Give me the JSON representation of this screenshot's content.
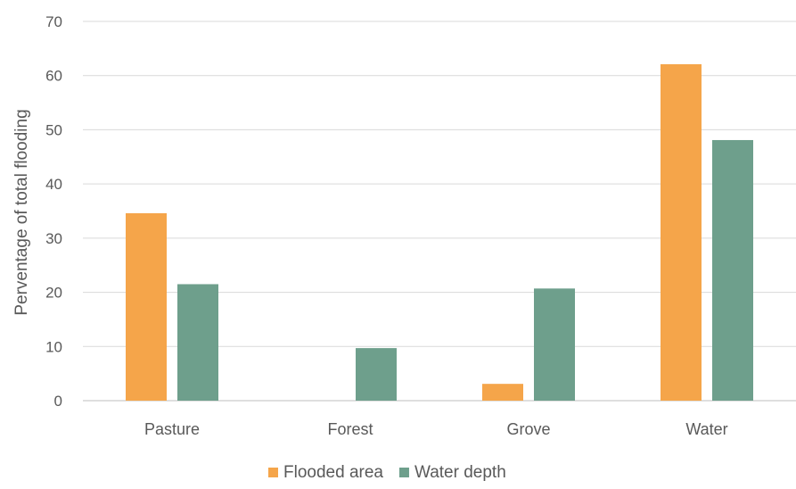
{
  "chart_data": {
    "type": "bar",
    "categories": [
      "Pasture",
      "Forest",
      "Grove",
      "Water"
    ],
    "series": [
      {
        "name": "Flooded area",
        "color": "#f5a54a",
        "values": [
          34.6,
          0,
          3.1,
          62.1
        ]
      },
      {
        "name": "Water depth",
        "color": "#6e9f8c",
        "values": [
          21.5,
          9.7,
          20.7,
          48.1
        ]
      }
    ],
    "title": "",
    "xlabel": "",
    "ylabel": "Perventage of total flooding",
    "ylim": [
      0,
      70
    ],
    "yticks": [
      0,
      10,
      20,
      30,
      40,
      50,
      60,
      70
    ],
    "grid": true,
    "legend_position": "bottom"
  }
}
